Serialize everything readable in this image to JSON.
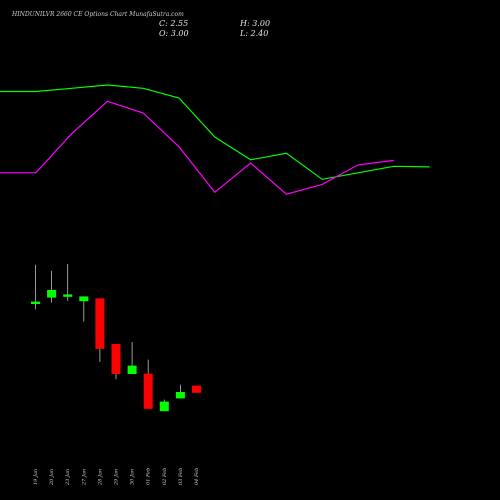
{
  "header": {
    "title": "HINDUNILVR 2660  CE Options  Chart MunafaSutra.com",
    "close": "C: 2.55",
    "open": "O: 3.00",
    "high": "H: 3.00",
    "low": "L: 2.40"
  },
  "colors": {
    "background": "#000000",
    "up": "#00ff00",
    "down": "#ff0000",
    "upper_band": "#00ff00",
    "lower_band": "#ff00ff"
  },
  "chart_data": {
    "type": "candlestick",
    "categories": [
      "19 Jan",
      "20 Jan",
      "23 Jan",
      "27 Jan",
      "28 Jan",
      "29 Jan",
      "30 Jan",
      "01 Feb",
      "02 Feb",
      "03 Feb",
      "04 Feb"
    ],
    "ylim": [
      0,
      50
    ],
    "candles": [
      {
        "open": 36.5,
        "close": 37.1,
        "high": 46.3,
        "low": 35.2
      },
      {
        "open": 38.1,
        "close": 40.0,
        "high": 44.8,
        "low": 36.8
      },
      {
        "open": 38.3,
        "close": 38.9,
        "high": 46.5,
        "low": 37.3
      },
      {
        "open": 37.2,
        "close": 38.4,
        "high": 38.4,
        "low": 32.1
      },
      {
        "open": 37.9,
        "close": 25.3,
        "high": 37.9,
        "low": 22.0
      },
      {
        "open": 26.5,
        "close": 19.0,
        "high": 26.5,
        "low": 17.7
      },
      {
        "open": 19.0,
        "close": 21.1,
        "high": 27.0,
        "low": 19.0
      },
      {
        "open": 19.1,
        "close": 10.3,
        "high": 22.6,
        "low": 10.3
      },
      {
        "open": 9.7,
        "close": 12.1,
        "high": 12.6,
        "low": 9.7
      },
      {
        "open": 12.9,
        "close": 14.5,
        "high": 16.3,
        "low": 12.9
      },
      {
        "open": 16.1,
        "close": 14.3,
        "high": 16.1,
        "low": 14.3
      }
    ],
    "upper_band": [
      1.0,
      1.0,
      1.5,
      2.0,
      1.5,
      0.0,
      -6.0,
      -9.5,
      -8.5,
      -12.5,
      -11.5,
      -10.5,
      -10.6
    ],
    "lower_band": [
      -11.5,
      -11.5,
      -5.5,
      -0.5,
      -2.3,
      -7.5,
      -14.5,
      -10.0,
      -14.8,
      -13.3,
      -10.3,
      -9.6
    ],
    "upper_band_x": [
      0,
      1,
      2,
      3,
      4,
      5,
      6,
      7,
      8,
      9,
      10,
      11,
      12
    ],
    "lower_band_x": [
      0,
      1,
      2,
      3,
      4,
      5,
      6,
      7,
      8,
      9,
      10,
      11
    ]
  }
}
